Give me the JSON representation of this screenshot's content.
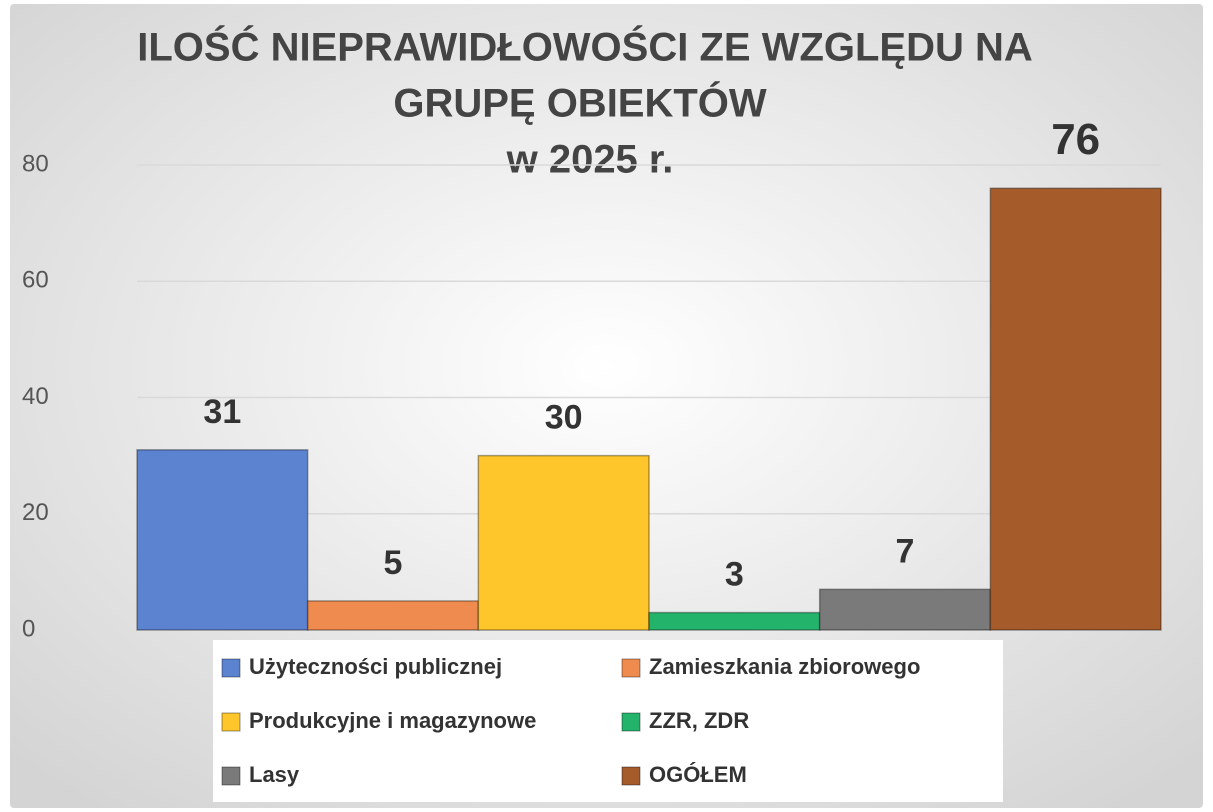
{
  "chart_data": {
    "type": "bar",
    "title": [
      "ILOŚĆ NIEPRAWIDŁOWOŚCI ZE WZGLĘDU NA",
      "GRUPĘ OBIEKTÓW"
    ],
    "subtitle": "w 2025 r.",
    "categories": [
      null
    ],
    "series": [
      {
        "name": "Użyteczności publicznej",
        "color": "#5b83d0",
        "values": [
          31
        ]
      },
      {
        "name": "Zamieszkania zbiorowego",
        "color": "#ef8b4e",
        "values": [
          5
        ]
      },
      {
        "name": "Produkcyjne i magazynowe",
        "color": "#fec62a",
        "values": [
          30
        ]
      },
      {
        "name": "ZZR, ZDR",
        "color": "#24b36b",
        "values": [
          3
        ]
      },
      {
        "name": "Lasy",
        "color": "#7a7a7a",
        "values": [
          7
        ]
      },
      {
        "name": "OGÓŁEM",
        "color": "#a65b2a",
        "values": [
          76
        ]
      }
    ],
    "ylim": [
      0,
      80
    ],
    "yticks": [
      0,
      20,
      40,
      60,
      80
    ],
    "grid": true,
    "legend": "bottom"
  }
}
